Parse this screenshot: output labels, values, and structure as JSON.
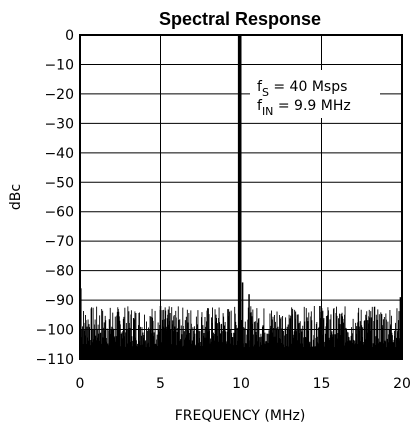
{
  "chart_data": {
    "type": "line",
    "title": "Spectral Response",
    "xlabel": "FREQUENCY (MHz)",
    "ylabel": "dBc",
    "xlim": [
      0,
      20
    ],
    "ylim": [
      -110,
      0
    ],
    "x_ticks": [
      0,
      5,
      10,
      15,
      20
    ],
    "y_ticks": [
      0,
      -10,
      -20,
      -30,
      -40,
      -50,
      -60,
      -70,
      -80,
      -90,
      -100,
      -110
    ],
    "x_tick_labels": [
      "0",
      "5",
      "10",
      "15",
      "20"
    ],
    "y_tick_labels": [
      "0",
      "−10",
      "−20",
      "−30",
      "−40",
      "−50",
      "−60",
      "−70",
      "−80",
      "−90",
      "−100",
      "−110"
    ],
    "grid": true,
    "noise_floor_range": [
      -110,
      -88
    ],
    "annotation": {
      "line1_main": "f",
      "line1_sub": "S",
      "line1_rest": " = 40 Msps",
      "line2_main": "f",
      "line2_sub": "IN",
      "line2_rest": " = 9.9 MHz"
    },
    "series": [
      {
        "peaks": [
          {
            "x": 9.9,
            "y": 0
          },
          {
            "x": 0.05,
            "y": -86
          },
          {
            "x": 5.0,
            "y": -92
          },
          {
            "x": 10.1,
            "y": -84
          },
          {
            "x": 10.5,
            "y": -88
          },
          {
            "x": 14.9,
            "y": -92
          },
          {
            "x": 15.0,
            "y": -94
          },
          {
            "x": 19.9,
            "y": -89
          }
        ]
      }
    ]
  }
}
